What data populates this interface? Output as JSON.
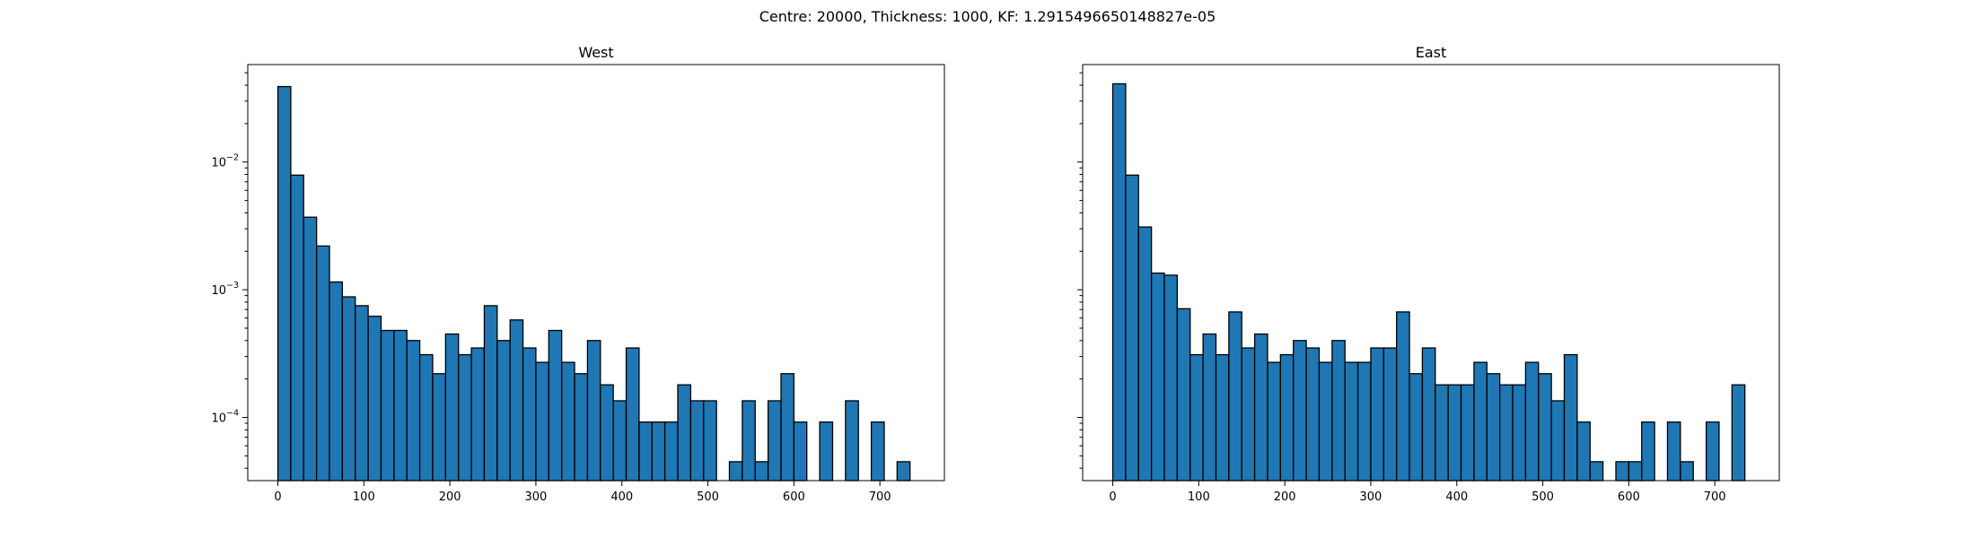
{
  "figure": {
    "suptitle": "Centre: 20000, Thickness: 1000, KF: 1.2915496650148827e-05"
  },
  "style": {
    "bar_fill": "#1f77b4",
    "bar_edge": "#000000"
  },
  "chart_data": [
    {
      "type": "bar",
      "title": "West",
      "xlabel": "",
      "ylabel": "",
      "y_scale": "log",
      "ylim": [
        3.2e-05,
        0.058
      ],
      "xlim": [
        -35,
        775
      ],
      "bin_width": 15,
      "x_ticks": [
        0,
        100,
        200,
        300,
        400,
        500,
        600,
        700
      ],
      "y_ticks": [
        {
          "base": "10",
          "exp": "−2",
          "value": 0.01
        },
        {
          "base": "10",
          "exp": "−3",
          "value": 0.001
        },
        {
          "base": "10",
          "exp": "−4",
          "value": 0.0001
        }
      ],
      "bin_start": [
        0,
        15,
        30,
        45,
        60,
        75,
        90,
        105,
        120,
        135,
        150,
        165,
        180,
        195,
        210,
        225,
        240,
        255,
        270,
        285,
        300,
        315,
        330,
        345,
        360,
        375,
        390,
        405,
        420,
        435,
        450,
        465,
        480,
        495,
        510,
        525,
        540,
        555,
        570,
        585,
        600,
        615,
        630,
        645,
        660,
        675,
        690,
        705,
        720
      ],
      "values": [
        0.039,
        0.0079,
        0.0037,
        0.0022,
        0.00115,
        0.00088,
        0.00075,
        0.00062,
        0.00048,
        0.00048,
        0.0004,
        0.00031,
        0.00022,
        0.00045,
        0.00031,
        0.00035,
        0.00075,
        0.0004,
        0.00058,
        0.00035,
        0.00027,
        0.00048,
        0.00027,
        0.00022,
        0.0004,
        0.00018,
        0.000135,
        0.00035,
        9.2e-05,
        9.2e-05,
        9.2e-05,
        0.00018,
        0.000135,
        0.000135,
        0,
        4.5e-05,
        0.000135,
        4.5e-05,
        0.000135,
        0.00022,
        9.2e-05,
        0,
        9.2e-05,
        0,
        0.000135,
        0,
        9.2e-05,
        0,
        4.5e-05
      ]
    },
    {
      "type": "bar",
      "title": "East",
      "xlabel": "",
      "ylabel": "",
      "y_scale": "log",
      "ylim": [
        3.2e-05,
        0.058
      ],
      "xlim": [
        -35,
        775
      ],
      "bin_width": 15,
      "x_ticks": [
        0,
        100,
        200,
        300,
        400,
        500,
        600,
        700
      ],
      "bin_start": [
        0,
        15,
        30,
        45,
        60,
        75,
        90,
        105,
        120,
        135,
        150,
        165,
        180,
        195,
        210,
        225,
        240,
        255,
        270,
        285,
        300,
        315,
        330,
        345,
        360,
        375,
        390,
        405,
        420,
        435,
        450,
        465,
        480,
        495,
        510,
        525,
        540,
        555,
        570,
        585,
        600,
        615,
        630,
        645,
        660,
        675,
        690,
        705,
        720
      ],
      "values": [
        0.041,
        0.0079,
        0.0031,
        0.00135,
        0.0013,
        0.00071,
        0.00031,
        0.00045,
        0.00031,
        0.00067,
        0.00035,
        0.00045,
        0.00027,
        0.00031,
        0.0004,
        0.00035,
        0.00027,
        0.0004,
        0.00027,
        0.00027,
        0.00035,
        0.00035,
        0.00067,
        0.00022,
        0.00035,
        0.00018,
        0.00018,
        0.00018,
        0.00027,
        0.00022,
        0.00018,
        0.00018,
        0.00027,
        0.00022,
        0.000135,
        0.00031,
        9.2e-05,
        4.5e-05,
        0,
        4.5e-05,
        4.5e-05,
        9.2e-05,
        0,
        9.2e-05,
        4.5e-05,
        0,
        9.2e-05,
        0,
        0.00018
      ]
    }
  ]
}
